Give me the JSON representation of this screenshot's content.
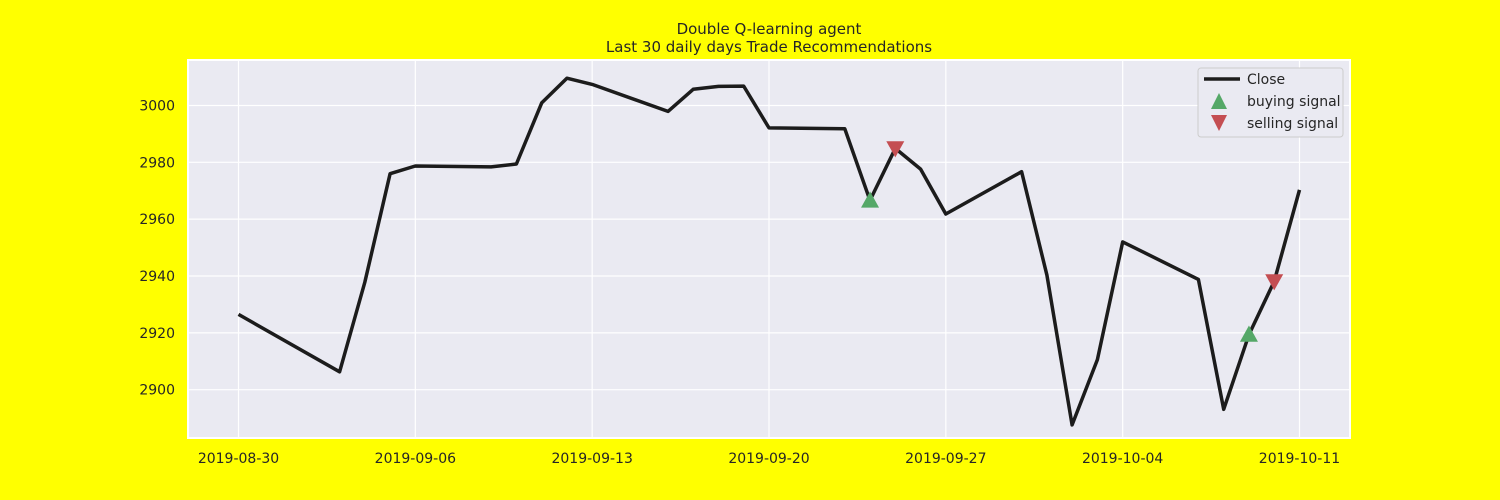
{
  "colors": {
    "background": "#ffff00",
    "plot_area": "#eaeaf2",
    "grid": "#ffffff",
    "close_line": "#1c1c1c",
    "buying_signal": "#55a868",
    "selling_signal": "#c44e52"
  },
  "chart_data": {
    "type": "line",
    "title": "Double Q-learning agent",
    "subtitle": "Last 30 daily days Trade Recommendations",
    "xlabel": "",
    "ylabel": "",
    "grid": true,
    "legend_position": "top-right",
    "xlim": [
      "2019-08-28",
      "2019-10-13"
    ],
    "ylim": [
      2883,
      3016
    ],
    "x_ticks": [
      "2019-08-30",
      "2019-09-06",
      "2019-09-13",
      "2019-09-20",
      "2019-09-27",
      "2019-10-04",
      "2019-10-11"
    ],
    "y_ticks": [
      2900,
      2920,
      2940,
      2960,
      2980,
      3000
    ],
    "series": [
      {
        "name": "Close",
        "marker": "line",
        "x": [
          "2019-08-30",
          "2019-09-03",
          "2019-09-04",
          "2019-09-05",
          "2019-09-06",
          "2019-09-09",
          "2019-09-10",
          "2019-09-11",
          "2019-09-12",
          "2019-09-13",
          "2019-09-16",
          "2019-09-17",
          "2019-09-18",
          "2019-09-19",
          "2019-09-20",
          "2019-09-23",
          "2019-09-24",
          "2019-09-25",
          "2019-09-26",
          "2019-09-27",
          "2019-09-30",
          "2019-10-01",
          "2019-10-02",
          "2019-10-03",
          "2019-10-04",
          "2019-10-07",
          "2019-10-08",
          "2019-10-09",
          "2019-10-10",
          "2019-10-11"
        ],
        "y": [
          2926.5,
          2906.3,
          2937.8,
          2976.0,
          2978.7,
          2978.4,
          2979.4,
          3000.9,
          3009.6,
          3007.4,
          2997.9,
          3005.7,
          3006.7,
          3006.8,
          2992.1,
          2991.8,
          2966.6,
          2984.9,
          2977.6,
          2961.8,
          2976.7,
          2940.3,
          2887.6,
          2910.6,
          2952.0,
          2938.8,
          2893.1,
          2919.4,
          2938.1,
          2970.3
        ]
      },
      {
        "name": "buying signal",
        "marker": "triangle-up",
        "x": [
          "2019-09-24",
          "2019-10-09"
        ],
        "y": [
          2966.6,
          2919.4
        ]
      },
      {
        "name": "selling signal",
        "marker": "triangle-down",
        "x": [
          "2019-09-25",
          "2019-10-10"
        ],
        "y": [
          2984.9,
          2938.1
        ]
      }
    ]
  }
}
